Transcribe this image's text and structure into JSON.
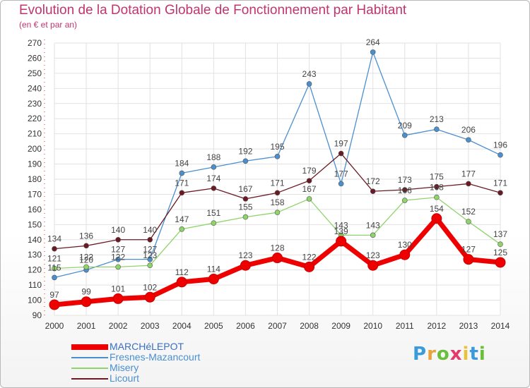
{
  "chart_data": {
    "type": "line",
    "title": "Evolution de la Dotation Globale de Fonctionnement par Habitant",
    "subtitle": "(en € et par an)",
    "xlabel": "",
    "ylabel": "",
    "categories": [
      "2000",
      "2001",
      "2002",
      "2003",
      "2004",
      "2005",
      "2006",
      "2007",
      "2008",
      "2009",
      "2010",
      "2011",
      "2012",
      "2013",
      "2014"
    ],
    "yticks": [
      90,
      100,
      110,
      120,
      130,
      140,
      150,
      160,
      170,
      180,
      190,
      200,
      210,
      220,
      230,
      240,
      250,
      260,
      270
    ],
    "ylim": [
      90,
      270
    ],
    "grid": true,
    "legend": "bottom-left",
    "series": [
      {
        "name": "MARCHéLEPOT",
        "color": "#ee0000",
        "values": [
          97,
          99,
          101,
          102,
          112,
          114,
          123,
          128,
          122,
          139,
          123,
          130,
          154,
          127,
          125
        ]
      },
      {
        "name": "Fresnes-Mazancourt",
        "color": "#4b8fcf",
        "values": [
          115,
          120,
          127,
          127,
          184,
          188,
          192,
          195,
          243,
          177,
          264,
          209,
          213,
          206,
          196
        ]
      },
      {
        "name": "Misery",
        "color": "#8fd46a",
        "values": [
          121,
          122,
          122,
          123,
          147,
          151,
          155,
          158,
          167,
          143,
          143,
          166,
          168,
          152,
          137
        ]
      },
      {
        "name": "Licourt",
        "color": "#6b1a24",
        "values": [
          134,
          136,
          140,
          140,
          171,
          174,
          167,
          171,
          179,
          197,
          172,
          173,
          175,
          177,
          171
        ]
      }
    ]
  },
  "logo": {
    "letters": [
      "P",
      "r",
      "o",
      "x",
      "i",
      "t",
      "i"
    ],
    "colors": [
      "#3b9ad9",
      "#e8a33a",
      "#6abf3a",
      "#e43a6a",
      "#e8c33a",
      "#3b9ad9",
      "#6abf3a"
    ]
  }
}
